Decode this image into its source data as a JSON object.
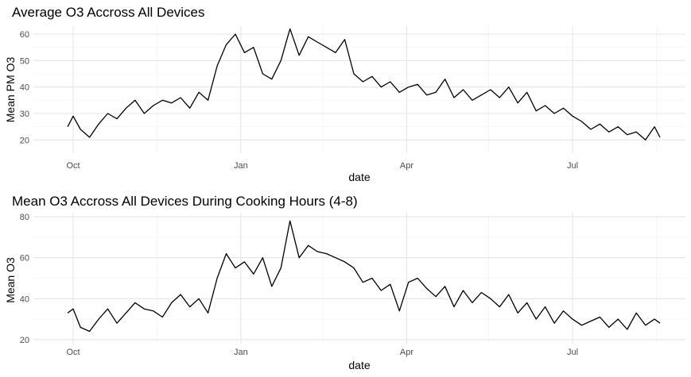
{
  "chart_data": [
    {
      "type": "line",
      "title": "Average O3 Accross All Devices",
      "xlabel": "date",
      "ylabel": "Mean PM O3",
      "x_ticks": [
        "Oct",
        "Jan",
        "Apr",
        "Jul"
      ],
      "y_ticks": [
        "20",
        "30",
        "40",
        "50",
        "60"
      ],
      "ylim": [
        15,
        63
      ],
      "x": [
        "2019-09-28",
        "2019-10-01",
        "2019-10-05",
        "2019-10-10",
        "2019-10-15",
        "2019-10-20",
        "2019-10-25",
        "2019-10-30",
        "2019-11-04",
        "2019-11-09",
        "2019-11-14",
        "2019-11-19",
        "2019-11-24",
        "2019-11-29",
        "2019-12-04",
        "2019-12-09",
        "2019-12-14",
        "2019-12-19",
        "2019-12-24",
        "2019-12-29",
        "2020-01-03",
        "2020-01-08",
        "2020-01-13",
        "2020-01-18",
        "2020-01-23",
        "2020-01-28",
        "2020-02-02",
        "2020-02-07",
        "2020-02-12",
        "2020-02-17",
        "2020-02-22",
        "2020-02-27",
        "2020-03-03",
        "2020-03-08",
        "2020-03-13",
        "2020-03-18",
        "2020-03-23",
        "2020-03-28",
        "2020-04-02",
        "2020-04-07",
        "2020-04-12",
        "2020-04-17",
        "2020-04-22",
        "2020-04-27",
        "2020-05-02",
        "2020-05-07",
        "2020-05-12",
        "2020-05-17",
        "2020-05-22",
        "2020-05-27",
        "2020-06-01",
        "2020-06-06",
        "2020-06-11",
        "2020-06-16",
        "2020-06-21",
        "2020-06-26",
        "2020-07-01",
        "2020-07-06",
        "2020-07-11",
        "2020-07-16",
        "2020-07-21",
        "2020-07-26",
        "2020-07-31",
        "2020-08-05",
        "2020-08-10",
        "2020-08-15",
        "2020-08-18"
      ],
      "series": [
        {
          "values": [
            25,
            29,
            24,
            21,
            26,
            30,
            28,
            32,
            35,
            30,
            33,
            35,
            34,
            36,
            32,
            38,
            35,
            48,
            56,
            60,
            53,
            55,
            45,
            43,
            50,
            62,
            52,
            59,
            57,
            55,
            53,
            58,
            45,
            42,
            44,
            40,
            42,
            38,
            40,
            41,
            37,
            38,
            43,
            36,
            39,
            35,
            37,
            39,
            36,
            40,
            34,
            38,
            31,
            33,
            30,
            32,
            29,
            27,
            24,
            26,
            23,
            25,
            22,
            23,
            20,
            25,
            21
          ]
        }
      ]
    },
    {
      "type": "line",
      "title": "Mean O3 Accross All Devices During Cooking Hours (4-8)",
      "xlabel": "date",
      "ylabel": "Mean O3",
      "x_ticks": [
        "Oct",
        "Jan",
        "Apr",
        "Jul"
      ],
      "y_ticks": [
        "20",
        "40",
        "60",
        "80"
      ],
      "ylim": [
        18,
        82
      ],
      "x": [
        "2019-09-28",
        "2019-10-01",
        "2019-10-05",
        "2019-10-10",
        "2019-10-15",
        "2019-10-20",
        "2019-10-25",
        "2019-10-30",
        "2019-11-04",
        "2019-11-09",
        "2019-11-14",
        "2019-11-19",
        "2019-11-24",
        "2019-11-29",
        "2019-12-04",
        "2019-12-09",
        "2019-12-14",
        "2019-12-19",
        "2019-12-24",
        "2019-12-29",
        "2020-01-03",
        "2020-01-08",
        "2020-01-13",
        "2020-01-18",
        "2020-01-23",
        "2020-01-28",
        "2020-02-02",
        "2020-02-07",
        "2020-02-12",
        "2020-02-17",
        "2020-02-22",
        "2020-02-27",
        "2020-03-03",
        "2020-03-08",
        "2020-03-13",
        "2020-03-18",
        "2020-03-23",
        "2020-03-28",
        "2020-04-02",
        "2020-04-07",
        "2020-04-12",
        "2020-04-17",
        "2020-04-22",
        "2020-04-27",
        "2020-05-02",
        "2020-05-07",
        "2020-05-12",
        "2020-05-17",
        "2020-05-22",
        "2020-05-27",
        "2020-06-01",
        "2020-06-06",
        "2020-06-11",
        "2020-06-16",
        "2020-06-21",
        "2020-06-26",
        "2020-07-01",
        "2020-07-06",
        "2020-07-11",
        "2020-07-16",
        "2020-07-21",
        "2020-07-26",
        "2020-07-31",
        "2020-08-05",
        "2020-08-10",
        "2020-08-15",
        "2020-08-18"
      ],
      "series": [
        {
          "values": [
            33,
            35,
            26,
            24,
            30,
            35,
            28,
            33,
            38,
            35,
            34,
            31,
            38,
            42,
            36,
            40,
            33,
            50,
            62,
            55,
            58,
            52,
            60,
            46,
            55,
            78,
            60,
            66,
            63,
            62,
            60,
            58,
            55,
            48,
            50,
            44,
            47,
            34,
            48,
            50,
            45,
            41,
            46,
            36,
            44,
            38,
            43,
            40,
            36,
            42,
            33,
            38,
            30,
            36,
            28,
            34,
            30,
            27,
            29,
            31,
            26,
            30,
            25,
            33,
            27,
            30,
            28
          ]
        }
      ]
    }
  ]
}
